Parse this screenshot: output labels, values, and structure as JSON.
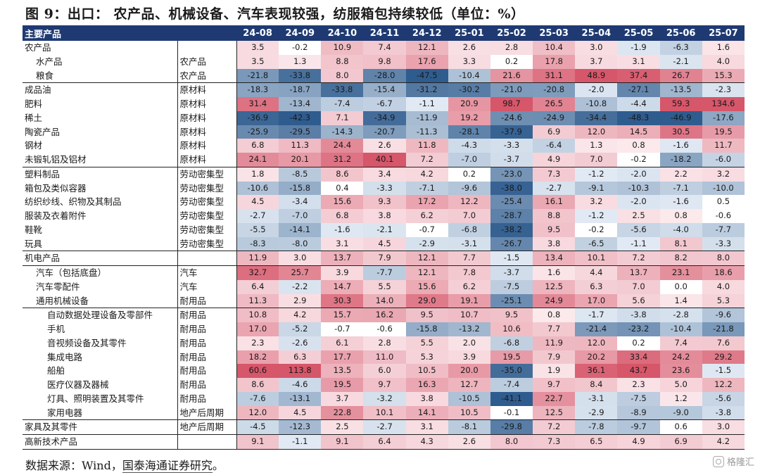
{
  "title": "图 9：出口：  农产品、机械设备、汽车表现较强，纺服箱包持续较低（单位：%）",
  "header": {
    "name_label": "主要产品",
    "months": [
      "24-08",
      "24-09",
      "24-10",
      "24-11",
      "24-12",
      "25-01",
      "25-02",
      "25-03",
      "25-04",
      "25-05",
      "25-06",
      "25-07"
    ]
  },
  "rows": [
    {
      "name": "农产品",
      "indent": 0,
      "cat": "",
      "values": [
        "3.5",
        "-0.2",
        "10.9",
        "7.4",
        "12.1",
        "2.6",
        "2.8",
        "10.4",
        "3.0",
        "-1.9",
        "-6.3",
        "1.6"
      ],
      "group_start": false
    },
    {
      "name": "水产品",
      "indent": 2,
      "cat": "农产品",
      "values": [
        "3.5",
        "1.3",
        "8.8",
        "9.8",
        "17.6",
        "3.3",
        "0.2",
        "17.8",
        "3.7",
        "3.1",
        "-2.1",
        "4.0"
      ],
      "group_start": false
    },
    {
      "name": "粮食",
      "indent": 2,
      "cat": "农产品",
      "values": [
        "-21.8",
        "-33.8",
        "8.0",
        "-28.0",
        "-47.5",
        "-10.4",
        "21.6",
        "31.1",
        "48.9",
        "37.4",
        "26.7",
        "15.3"
      ],
      "group_start": false
    },
    {
      "name": "成品油",
      "indent": 0,
      "cat": "原材料",
      "values": [
        "-18.3",
        "-18.7",
        "-33.8",
        "-15.4",
        "-31.2",
        "-30.2",
        "-21.0",
        "-20.8",
        "-2.0",
        "-27.1",
        "-13.5",
        "-2.3"
      ],
      "group_start": true
    },
    {
      "name": "肥料",
      "indent": 0,
      "cat": "原材料",
      "values": [
        "31.4",
        "-13.4",
        "-7.4",
        "-6.7",
        "-1.1",
        "20.9",
        "98.7",
        "26.5",
        "-10.8",
        "-4.4",
        "59.3",
        "134.6"
      ],
      "group_start": false
    },
    {
      "name": "稀土",
      "indent": 0,
      "cat": "原材料",
      "values": [
        "-36.9",
        "-42.3",
        "7.1",
        "-34.9",
        "-11.9",
        "19.2",
        "-24.6",
        "-24.9",
        "-34.4",
        "-48.3",
        "-46.9",
        "-17.6"
      ],
      "group_start": false
    },
    {
      "name": "陶瓷产品",
      "indent": 0,
      "cat": "原材料",
      "values": [
        "-25.9",
        "-29.5",
        "-14.3",
        "-20.7",
        "-11.3",
        "-28.1",
        "-37.9",
        "6.9",
        "12.0",
        "14.5",
        "30.5",
        "19.5"
      ],
      "group_start": false
    },
    {
      "name": "钢材",
      "indent": 0,
      "cat": "原材料",
      "values": [
        "6.8",
        "11.3",
        "24.4",
        "2.6",
        "11.8",
        "-4.3",
        "-3.3",
        "-6.4",
        "1.3",
        "0.8",
        "-1.6",
        "11.7"
      ],
      "group_start": false
    },
    {
      "name": "未锻轧铝及铝材",
      "indent": 0,
      "cat": "原材料",
      "values": [
        "24.1",
        "20.1",
        "31.2",
        "40.1",
        "7.2",
        "-7.0",
        "-3.7",
        "4.9",
        "7.0",
        "-0.2",
        "-18.2",
        "-6.0"
      ],
      "group_start": false
    },
    {
      "name": "塑料制品",
      "indent": 0,
      "cat": "劳动密集型",
      "values": [
        "1.8",
        "-8.5",
        "8.6",
        "3.4",
        "4.2",
        "0.2",
        "-23.0",
        "7.3",
        "-1.2",
        "-2.0",
        "2.2",
        "3.2"
      ],
      "group_start": true
    },
    {
      "name": "箱包及类似容器",
      "indent": 0,
      "cat": "劳动密集型",
      "values": [
        "-10.6",
        "-15.8",
        "0.4",
        "-3.3",
        "-7.1",
        "-9.6",
        "-38.0",
        "-2.7",
        "-9.1",
        "-10.3",
        "-7.1",
        "-10.0"
      ],
      "group_start": false
    },
    {
      "name": "纺织纱线、织物及其制品",
      "indent": 0,
      "cat": "劳动密集型",
      "values": [
        "4.5",
        "-3.4",
        "15.6",
        "9.3",
        "17.2",
        "12.2",
        "-25.4",
        "16.1",
        "3.2",
        "-2.0",
        "-1.6",
        "0.5"
      ],
      "group_start": false
    },
    {
      "name": "服装及衣着附件",
      "indent": 0,
      "cat": "劳动密集型",
      "values": [
        "-2.7",
        "-7.0",
        "6.8",
        "3.8",
        "6.2",
        "7.0",
        "-28.7",
        "8.8",
        "-1.2",
        "2.5",
        "0.8",
        "-0.6"
      ],
      "group_start": false
    },
    {
      "name": "鞋靴",
      "indent": 0,
      "cat": "劳动密集型",
      "values": [
        "-5.5",
        "-14.1",
        "-1.6",
        "-2.1",
        "-0.7",
        "-6.8",
        "-38.2",
        "9.5",
        "-0.2",
        "-5.6",
        "-4.0",
        "-7.7"
      ],
      "group_start": false
    },
    {
      "name": "玩具",
      "indent": 0,
      "cat": "劳动密集型",
      "values": [
        "-8.3",
        "-8.0",
        "3.1",
        "4.5",
        "-2.9",
        "-3.1",
        "-26.7",
        "3.8",
        "-6.5",
        "-1.1",
        "8.1",
        "-3.3"
      ],
      "group_start": false
    },
    {
      "name": "机电产品",
      "indent": 0,
      "cat": "",
      "values": [
        "11.9",
        "3.0",
        "13.7",
        "7.9",
        "12.1",
        "7.7",
        "-1.5",
        "13.4",
        "10.1",
        "7.2",
        "8.2",
        "8.0"
      ],
      "group_start": true
    },
    {
      "name": "汽车（包括底盘）",
      "indent": 2,
      "cat": "汽车",
      "values": [
        "32.7",
        "25.7",
        "3.9",
        "-7.7",
        "12.1",
        "7.8",
        "-3.7",
        "1.6",
        "4.4",
        "13.7",
        "23.1",
        "18.6"
      ],
      "group_start": true
    },
    {
      "name": "汽车零配件",
      "indent": 2,
      "cat": "汽车",
      "values": [
        "6.4",
        "-2.2",
        "14.7",
        "5.5",
        "15.6",
        "6.2",
        "-7.5",
        "12.5",
        "6.3",
        "7.0",
        "0.0",
        "4.0"
      ],
      "group_start": false
    },
    {
      "name": "通用机械设备",
      "indent": 2,
      "cat": "耐用品",
      "values": [
        "11.3",
        "2.9",
        "30.3",
        "14.0",
        "29.0",
        "19.1",
        "-25.1",
        "24.9",
        "17.0",
        "5.6",
        "1.4",
        "5.3"
      ],
      "group_start": false
    },
    {
      "name": "自动数据处理设备及零部件",
      "indent": 4,
      "cat": "耐用品",
      "values": [
        "10.8",
        "4.2",
        "15.7",
        "16.2",
        "9.5",
        "10.7",
        "9.5",
        "0.8",
        "-1.7",
        "-3.8",
        "-2.8",
        "-9.6"
      ],
      "group_start": true
    },
    {
      "name": "手机",
      "indent": 4,
      "cat": "耐用品",
      "values": [
        "17.0",
        "-5.2",
        "-0.7",
        "-0.6",
        "-15.8",
        "-13.2",
        "10.6",
        "7.7",
        "-21.4",
        "-23.2",
        "-10.4",
        "-21.8"
      ],
      "group_start": false
    },
    {
      "name": "音视频设备及其零件",
      "indent": 4,
      "cat": "耐用品",
      "values": [
        "2.3",
        "-2.6",
        "6.1",
        "2.8",
        "5.5",
        "2.0",
        "-6.8",
        "11.9",
        "12.0",
        "0.2",
        "7.4",
        "7.6"
      ],
      "group_start": false
    },
    {
      "name": "集成电路",
      "indent": 4,
      "cat": "耐用品",
      "values": [
        "18.2",
        "6.3",
        "17.7",
        "11.0",
        "5.3",
        "3.9",
        "19.5",
        "7.9",
        "20.2",
        "33.4",
        "24.2",
        "29.2"
      ],
      "group_start": false
    },
    {
      "name": "船舶",
      "indent": 4,
      "cat": "耐用品",
      "values": [
        "60.6",
        "113.8",
        "13.5",
        "6.0",
        "10.5",
        "20.0",
        "-35.0",
        "1.9",
        "36.1",
        "43.7",
        "23.6",
        "-1.5"
      ],
      "group_start": false
    },
    {
      "name": "医疗仪器及器械",
      "indent": 4,
      "cat": "耐用品",
      "values": [
        "8.6",
        "-4.6",
        "19.5",
        "9.7",
        "16.3",
        "12.7",
        "-7.4",
        "9.7",
        "8.4",
        "2.3",
        "5.0",
        "12.2"
      ],
      "group_start": false
    },
    {
      "name": "灯具、照明装置及其零件",
      "indent": 4,
      "cat": "耐用品",
      "values": [
        "-7.6",
        "-13.1",
        "3.7",
        "-3.2",
        "3.8",
        "-10.5",
        "-41.1",
        "22.7",
        "-3.1",
        "-7.5",
        "1.2",
        "-5.6"
      ],
      "group_start": false
    },
    {
      "name": "家用电器",
      "indent": 4,
      "cat": "地产后周期",
      "values": [
        "12.0",
        "4.5",
        "22.8",
        "10.1",
        "14.1",
        "10.5",
        "-0.1",
        "12.5",
        "-2.9",
        "-8.9",
        "-9.0",
        "-3.8"
      ],
      "group_start": false
    },
    {
      "name": "家具及其零件",
      "indent": 0,
      "cat": "地产后周期",
      "values": [
        "-4.5",
        "-12.3",
        "2.5",
        "-2.7",
        "3.1",
        "-8.1",
        "-29.8",
        "7.2",
        "-7.8",
        "-9.7",
        "0.6",
        "3.0"
      ],
      "group_start": true
    },
    {
      "name": "高新技术产品",
      "indent": 0,
      "cat": "",
      "values": [
        "9.1",
        "-1.1",
        "9.1",
        "6.4",
        "4.3",
        "2.6",
        "8.0",
        "7.3",
        "6.5",
        "4.9",
        "6.9",
        "4.2"
      ],
      "group_start": true
    }
  ],
  "source": {
    "prefix": "数据来源：Wind，",
    "org": "国泰海通证券研究",
    "suffix": "。"
  },
  "watermark": "格隆汇",
  "colors": {
    "header_bg": "#1f3a73",
    "positive": "#d9586a",
    "negative": "#2f5b8e"
  }
}
